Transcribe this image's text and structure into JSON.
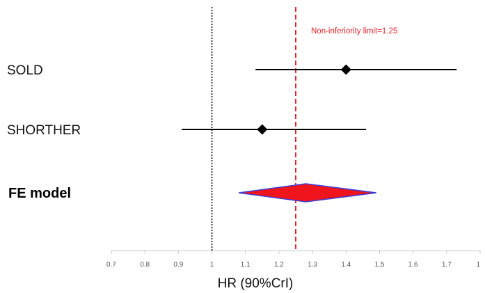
{
  "chart_data": {
    "type": "forest",
    "title": "",
    "xlabel": "HR (90%CrI)",
    "ylabel": "",
    "xlim": [
      0.7,
      1.8
    ],
    "x_ticks": [
      "0.7",
      "0.8",
      "0.9",
      "1",
      "1.1",
      "1.2",
      "1.3",
      "1.4",
      "1.5",
      "1.6",
      "1.7",
      "1"
    ],
    "grid": false,
    "studies": [
      {
        "label": "SOLD",
        "estimate": 1.4,
        "lower": 1.13,
        "upper": 1.73
      },
      {
        "label": "SHORTHER",
        "estimate": 1.15,
        "lower": 0.91,
        "upper": 1.46
      }
    ],
    "pooled": {
      "label": "FE model",
      "estimate": 1.28,
      "lower": 1.08,
      "upper": 1.49
    },
    "reference_lines": [
      {
        "value": 1.0,
        "style": "dotted",
        "color": "#111111"
      },
      {
        "value": 1.25,
        "style": "dashed",
        "color": "#e8242b"
      }
    ],
    "annotation": "Non-inferiority limit=1.25",
    "colors": {
      "pooled_fill": "#f0141c",
      "pooled_stroke": "#3b3bd6",
      "limit_line": "#e8242b",
      "axis": "#c8c8c8"
    }
  }
}
